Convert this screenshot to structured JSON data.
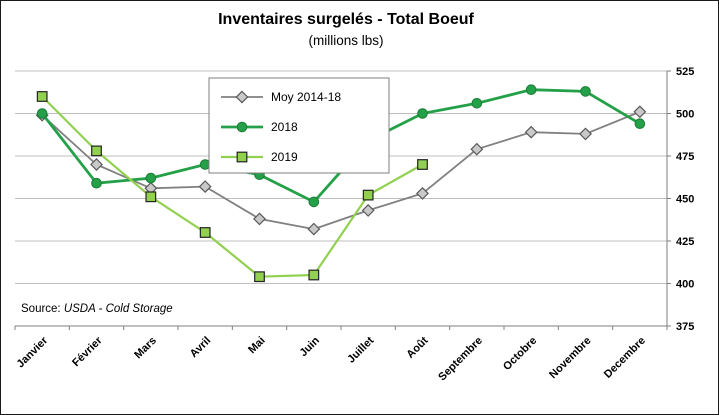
{
  "chart": {
    "title": "Inventaires surgelés - Total Boeuf",
    "subtitle": "(millions lbs)",
    "source_prefix": "Source: ",
    "source_text": "USDA - Cold Storage"
  },
  "chart_data": {
    "type": "line",
    "title": "Inventaires surgelés - Total Boeuf",
    "subtitle": "(millions lbs)",
    "categories": [
      "Janvier",
      "Février",
      "Mars",
      "Avril",
      "Mai",
      "Juin",
      "Juillet",
      "Août",
      "Septembre",
      "Octobre",
      "Novembre",
      "Decembre"
    ],
    "series": [
      {
        "name": "Moy 2014-18",
        "marker": "diamond",
        "color": "#808080",
        "marker_fill": "#c9c9c9",
        "marker_stroke": "#595959",
        "line_width": 1.8,
        "values": [
          499,
          470,
          456,
          457,
          438,
          432,
          443,
          453,
          479,
          489,
          488,
          501
        ]
      },
      {
        "name": "2018",
        "marker": "circle",
        "color": "#24a148",
        "marker_fill": "#24a148",
        "marker_stroke": "#1b7d37",
        "line_width": 2.8,
        "values": [
          500,
          459,
          462,
          470,
          464,
          448,
          484,
          500,
          506,
          514,
          513,
          494
        ]
      },
      {
        "name": "2019",
        "marker": "square",
        "color": "#92d050",
        "marker_fill": "#92d050",
        "marker_stroke": "#222222",
        "line_width": 2.2,
        "values": [
          510,
          478,
          451,
          430,
          404,
          405,
          452,
          470,
          null,
          null,
          null,
          null
        ]
      }
    ],
    "ylim": [
      375,
      525
    ],
    "ytick_step": 25,
    "grid": true,
    "legend_position": "top-left-inside",
    "y_axis_side": "right"
  }
}
